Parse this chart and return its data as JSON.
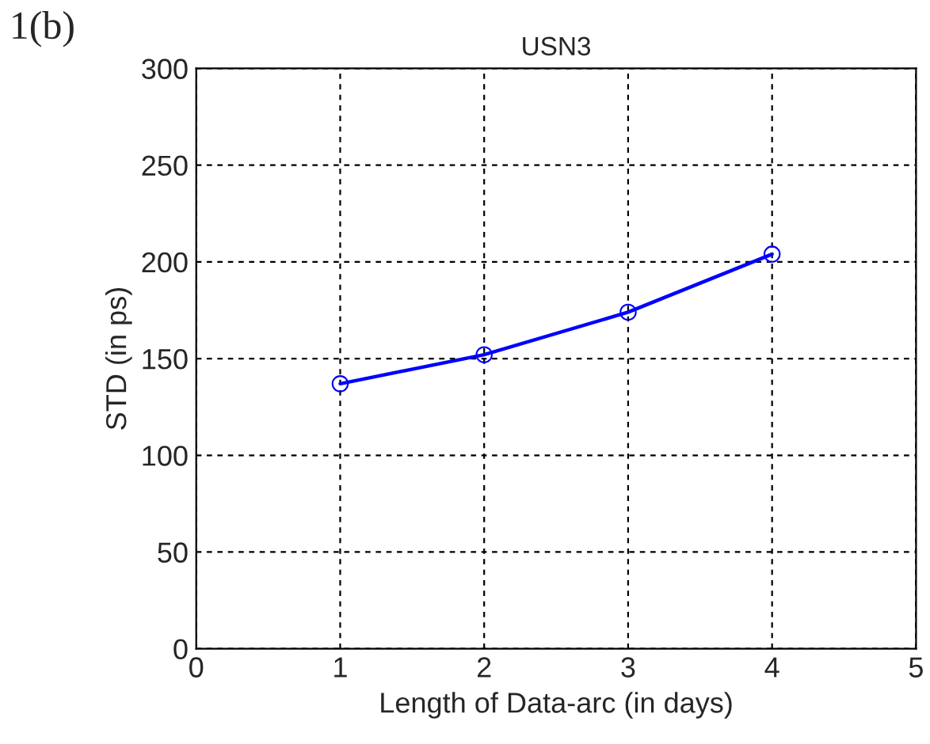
{
  "chart_data": {
    "type": "line",
    "title": "USN3",
    "xlabel": "Length of Data-arc (in days)",
    "ylabel": "STD (in ps)",
    "x": [
      1,
      2,
      3,
      4
    ],
    "series": [
      {
        "color": "#0000ff",
        "values": [
          137,
          152,
          174,
          204
        ]
      }
    ],
    "xlim": [
      0,
      5
    ],
    "xticks": [
      0,
      1,
      2,
      3,
      4,
      5
    ],
    "ylim": [
      0,
      300
    ],
    "yticks": [
      0,
      50,
      100,
      150,
      200,
      250,
      300
    ],
    "grid": true,
    "marker": "circle",
    "line_style": "solid",
    "annotations": [
      "1(b)"
    ]
  }
}
